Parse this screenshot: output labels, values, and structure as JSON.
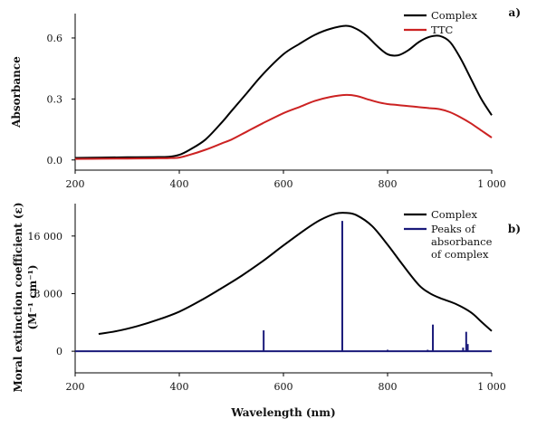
{
  "chart_data": [
    {
      "panel_label": "a)",
      "type": "line",
      "xlabel": "",
      "ylabel": "Absorbance",
      "xlim": [
        200,
        1000
      ],
      "ylim": [
        -0.05,
        0.72
      ],
      "xticks": [
        200,
        400,
        600,
        800,
        1000
      ],
      "xtick_labels": [
        "200",
        "400",
        "600",
        "800",
        "1 000"
      ],
      "yticks": [
        0.0,
        0.3,
        0.6
      ],
      "ytick_labels": [
        "0.0",
        "0.3",
        "0.6"
      ],
      "legend": "top-right",
      "grid": false,
      "series": [
        {
          "name": "Complex",
          "color": "#000000",
          "x": [
            200,
            250,
            300,
            350,
            380,
            400,
            420,
            450,
            480,
            500,
            530,
            560,
            600,
            630,
            660,
            690,
            720,
            740,
            760,
            780,
            800,
            820,
            840,
            860,
            880,
            900,
            920,
            940,
            960,
            980,
            1000
          ],
          "y": [
            0.01,
            0.012,
            0.013,
            0.014,
            0.016,
            0.025,
            0.05,
            0.1,
            0.18,
            0.24,
            0.33,
            0.42,
            0.52,
            0.57,
            0.615,
            0.645,
            0.66,
            0.645,
            0.61,
            0.56,
            0.52,
            0.515,
            0.54,
            0.58,
            0.605,
            0.61,
            0.58,
            0.5,
            0.4,
            0.3,
            0.22
          ]
        },
        {
          "name": "TTC",
          "color": "#cc2222",
          "x": [
            200,
            250,
            300,
            350,
            380,
            400,
            420,
            450,
            480,
            500,
            530,
            560,
            600,
            630,
            660,
            690,
            720,
            740,
            760,
            780,
            800,
            820,
            840,
            860,
            880,
            900,
            920,
            940,
            960,
            980,
            1000
          ],
          "y": [
            0.005,
            0.006,
            0.007,
            0.008,
            0.009,
            0.012,
            0.025,
            0.05,
            0.08,
            0.1,
            0.14,
            0.18,
            0.23,
            0.26,
            0.29,
            0.31,
            0.32,
            0.315,
            0.3,
            0.285,
            0.275,
            0.27,
            0.265,
            0.26,
            0.255,
            0.25,
            0.235,
            0.21,
            0.18,
            0.145,
            0.11
          ]
        }
      ]
    },
    {
      "panel_label": "b)",
      "type": "line",
      "xlabel": "Wavelength (nm)",
      "ylabel": "Moral extinction coefficient (ε)",
      "ylabel_units": "(M⁻¹ cm⁻¹)",
      "xlim": [
        200,
        1000
      ],
      "ylim": [
        -3000,
        20500
      ],
      "xticks": [
        200,
        400,
        600,
        800,
        1000
      ],
      "xtick_labels": [
        "200",
        "400",
        "600",
        "800",
        "1 000"
      ],
      "yticks": [
        0,
        8000,
        16000
      ],
      "ytick_labels": [
        "0",
        "8 000",
        "16 000"
      ],
      "legend": "top-right",
      "grid": false,
      "series": [
        {
          "name": "Complex",
          "color": "#000000",
          "x": [
            245,
            280,
            320,
            360,
            400,
            440,
            480,
            520,
            560,
            600,
            640,
            670,
            700,
            720,
            740,
            770,
            800,
            830,
            860,
            880,
            900,
            930,
            960,
            980,
            1000
          ],
          "y": [
            2400,
            2800,
            3500,
            4400,
            5500,
            7000,
            8700,
            10500,
            12500,
            14700,
            16800,
            18200,
            19100,
            19200,
            18900,
            17400,
            14800,
            11900,
            9200,
            8100,
            7400,
            6600,
            5400,
            4100,
            2800
          ]
        },
        {
          "name": "Peaks of absorbance of complex",
          "legend_lines": [
            "Peaks of",
            "absorbance",
            "of complex"
          ],
          "color": "#1a1a7a",
          "peaks": [
            {
              "x": 562,
              "y": 2900
            },
            {
              "x": 713,
              "y": 18100
            },
            {
              "x": 800,
              "y": 200
            },
            {
              "x": 877,
              "y": 200
            },
            {
              "x": 887,
              "y": 3700
            },
            {
              "x": 945,
              "y": 500
            },
            {
              "x": 951,
              "y": 2700
            },
            {
              "x": 954,
              "y": 1000
            }
          ]
        }
      ]
    }
  ]
}
